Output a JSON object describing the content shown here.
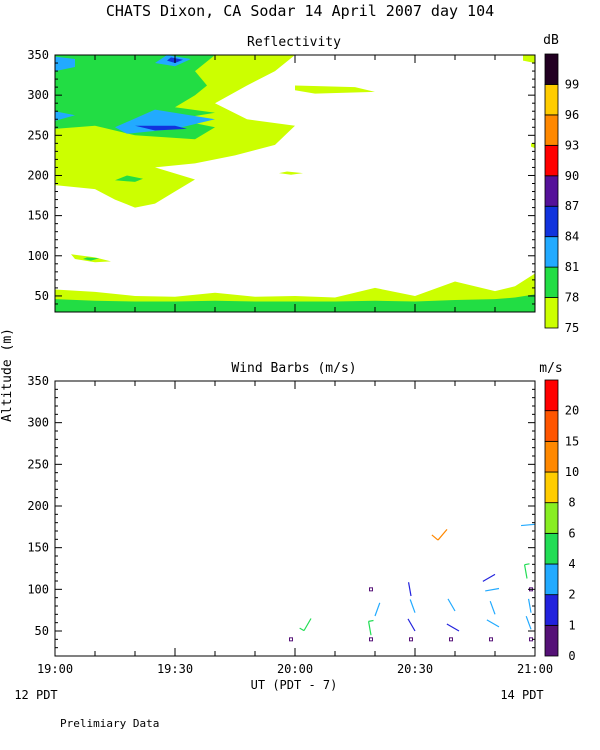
{
  "title": "CHATS Dixon, CA  Sodar  14 April 2007  day 104",
  "ylabel": "Altitude (m)",
  "xlabel": "UT  (PDT - 7)",
  "footer_left": "12 PDT",
  "footer_right": "14 PDT",
  "note": "Prelimiary Data",
  "chart_data": [
    {
      "type": "heatmap",
      "title": "Reflectivity",
      "unit_label": "dB",
      "x_ticks": [
        "19:00",
        "19:30",
        "20:00",
        "20:30",
        "21:00"
      ],
      "y_ticks": [
        50,
        100,
        150,
        200,
        250,
        300,
        350
      ],
      "ylim": [
        30,
        350
      ],
      "colorbar": {
        "labels": [
          "75",
          "78",
          "81",
          "84",
          "87",
          "90",
          "93",
          "96",
          "99"
        ],
        "colors": [
          "#ccff00",
          "#22dd44",
          "#22aaff",
          "#1133dd",
          "#551199",
          "#ff0000",
          "#ff8800",
          "#ffcc00",
          "#220022"
        ]
      },
      "x_minutes": [
        0,
        5,
        10,
        15,
        20,
        25,
        30,
        35,
        40,
        45,
        50,
        55,
        60
      ],
      "surface_layer": [
        {
          "minute": 0,
          "top": 58,
          "mid": 46
        },
        {
          "minute": 10,
          "top": 55,
          "mid": 44
        },
        {
          "minute": 20,
          "top": 50,
          "mid": 43
        },
        {
          "minute": 30,
          "top": 49,
          "mid": 43
        },
        {
          "minute": 40,
          "top": 54,
          "mid": 44
        },
        {
          "minute": 50,
          "top": 49,
          "mid": 43
        },
        {
          "minute": 60,
          "top": 50,
          "mid": 43
        },
        {
          "minute": 70,
          "top": 48,
          "mid": 43
        },
        {
          "minute": 80,
          "top": 60,
          "mid": 44
        },
        {
          "minute": 90,
          "top": 50,
          "mid": 43
        },
        {
          "minute": 100,
          "top": 68,
          "mid": 45
        },
        {
          "minute": 110,
          "top": 56,
          "mid": 46
        },
        {
          "minute": 115,
          "top": 62,
          "mid": 48
        },
        {
          "minute": 120,
          "top": 78,
          "mid": 52
        }
      ],
      "cloud_regions": [
        {
          "level": "75",
          "polygon": [
            [
              0,
              350
            ],
            [
              60,
              350
            ],
            [
              55,
              330
            ],
            [
              48,
              312
            ],
            [
              40,
              290
            ],
            [
              48,
              270
            ],
            [
              60,
              262
            ],
            [
              55,
              238
            ],
            [
              45,
              225
            ],
            [
              35,
              215
            ],
            [
              25,
              210
            ],
            [
              35,
              195
            ],
            [
              30,
              180
            ],
            [
              25,
              165
            ],
            [
              20,
              160
            ],
            [
              15,
              170
            ],
            [
              10,
              183
            ],
            [
              0,
              188
            ]
          ]
        },
        {
          "level": "75",
          "polygon": [
            [
              38,
              350
            ],
            [
              52,
              350
            ],
            [
              52,
              338
            ],
            [
              45,
              335
            ]
          ]
        },
        {
          "level": "75",
          "polygon": [
            [
              60,
              312
            ],
            [
              75,
              310
            ],
            [
              80,
              304
            ],
            [
              65,
              302
            ],
            [
              60,
              306
            ]
          ]
        },
        {
          "level": "75",
          "polygon": [
            [
              12,
              200
            ],
            [
              20,
              196
            ],
            [
              26,
              186
            ],
            [
              22,
              178
            ],
            [
              15,
              176
            ],
            [
              10,
              184
            ]
          ]
        },
        {
          "level": "75",
          "polygon": [
            [
              4,
              102
            ],
            [
              10,
              98
            ],
            [
              14,
              93
            ],
            [
              10,
              92
            ],
            [
              5,
              96
            ]
          ]
        },
        {
          "level": "75",
          "polygon": [
            [
              58,
              205
            ],
            [
              62,
              203
            ],
            [
              59,
              201
            ],
            [
              56,
              203
            ]
          ]
        },
        {
          "level": "75",
          "polygon": [
            [
              117,
              350
            ],
            [
              120,
              350
            ],
            [
              120,
              340
            ],
            [
              117,
              343
            ]
          ]
        },
        {
          "level": "75",
          "polygon": [
            [
              119,
              240
            ],
            [
              120,
              240
            ],
            [
              120,
              234
            ],
            [
              119,
              236
            ]
          ]
        },
        {
          "level": "78",
          "polygon": [
            [
              0,
              350
            ],
            [
              40,
              350
            ],
            [
              35,
              330
            ],
            [
              38,
              312
            ],
            [
              35,
              300
            ],
            [
              30,
              285
            ],
            [
              40,
              278
            ],
            [
              30,
              270
            ],
            [
              40,
              260
            ],
            [
              35,
              245
            ],
            [
              20,
              250
            ],
            [
              10,
              262
            ],
            [
              0,
              258
            ]
          ]
        },
        {
          "level": "78",
          "polygon": [
            [
              18,
              200
            ],
            [
              22,
              196
            ],
            [
              20,
              192
            ],
            [
              15,
              194
            ]
          ]
        },
        {
          "level": "78",
          "polygon": [
            [
              8,
              98
            ],
            [
              11,
              97
            ],
            [
              9,
              94
            ],
            [
              7,
              96
            ]
          ]
        },
        {
          "level": "81",
          "polygon": [
            [
              0,
              348
            ],
            [
              5,
              345
            ],
            [
              5,
              335
            ],
            [
              0,
              330
            ]
          ]
        },
        {
          "level": "81",
          "polygon": [
            [
              25,
              282
            ],
            [
              40,
              270
            ],
            [
              30,
              258
            ],
            [
              18,
              252
            ],
            [
              15,
              260
            ]
          ]
        },
        {
          "level": "81",
          "polygon": [
            [
              0,
              280
            ],
            [
              5,
              275
            ],
            [
              0,
              268
            ]
          ]
        },
        {
          "level": "81",
          "polygon": [
            [
              28,
              350
            ],
            [
              34,
              345
            ],
            [
              30,
              336
            ],
            [
              25,
              340
            ]
          ]
        },
        {
          "level": "84",
          "polygon": [
            [
              20,
              262
            ],
            [
              30,
              262
            ],
            [
              33,
              258
            ],
            [
              25,
              256
            ]
          ]
        },
        {
          "level": "84",
          "polygon": [
            [
              29,
              347
            ],
            [
              32,
              344
            ],
            [
              30,
              340
            ],
            [
              28,
              343
            ]
          ]
        }
      ]
    },
    {
      "type": "scatter",
      "title": "Wind Barbs (m/s)",
      "unit_label": "m/s",
      "x_ticks": [
        "19:00",
        "19:30",
        "20:00",
        "20:30",
        "21:00"
      ],
      "y_ticks": [
        50,
        100,
        150,
        200,
        250,
        300,
        350
      ],
      "ylim": [
        20,
        350
      ],
      "colorbar": {
        "labels": [
          "0",
          "1",
          "2",
          "4",
          "6",
          "8",
          "10",
          "15",
          "20"
        ],
        "colors": [
          "#551177",
          "#2222dd",
          "#22aaff",
          "#22dd55",
          "#88ee22",
          "#ffcc00",
          "#ff8800",
          "#ff5500",
          "#ff0000"
        ]
      },
      "barbs": [
        {
          "time": "19:59",
          "alt": 40,
          "speed": 0,
          "dir_deg": 0
        },
        {
          "time": "20:04",
          "alt": 65,
          "speed": 4,
          "dir_deg": 210
        },
        {
          "time": "20:19",
          "alt": 40,
          "speed": 0,
          "dir_deg": 0
        },
        {
          "time": "20:19",
          "alt": 100,
          "speed": 0,
          "dir_deg": 0
        },
        {
          "time": "20:19",
          "alt": 45,
          "speed": 4,
          "dir_deg": 350
        },
        {
          "time": "20:20",
          "alt": 68,
          "speed": 2,
          "dir_deg": 20
        },
        {
          "time": "20:29",
          "alt": 40,
          "speed": 0,
          "dir_deg": 0
        },
        {
          "time": "20:29",
          "alt": 92,
          "speed": 1,
          "dir_deg": 350
        },
        {
          "time": "20:30",
          "alt": 72,
          "speed": 2,
          "dir_deg": 340
        },
        {
          "time": "20:30",
          "alt": 50,
          "speed": 1,
          "dir_deg": 330
        },
        {
          "time": "20:38",
          "alt": 172,
          "speed": 10,
          "dir_deg": 220
        },
        {
          "time": "20:39",
          "alt": 40,
          "speed": 0,
          "dir_deg": 0
        },
        {
          "time": "20:40",
          "alt": 74,
          "speed": 2,
          "dir_deg": 330
        },
        {
          "time": "20:41",
          "alt": 50,
          "speed": 1,
          "dir_deg": 300
        },
        {
          "time": "20:49",
          "alt": 40,
          "speed": 0,
          "dir_deg": 0
        },
        {
          "time": "20:50",
          "alt": 118,
          "speed": 1,
          "dir_deg": 240
        },
        {
          "time": "20:51",
          "alt": 101,
          "speed": 2,
          "dir_deg": 260
        },
        {
          "time": "20:50",
          "alt": 70,
          "speed": 2,
          "dir_deg": 340
        },
        {
          "time": "20:51",
          "alt": 55,
          "speed": 2,
          "dir_deg": 300
        },
        {
          "time": "20:59",
          "alt": 40,
          "speed": 0,
          "dir_deg": 0
        },
        {
          "time": "20:59",
          "alt": 100,
          "speed": 0,
          "dir_deg": 0
        },
        {
          "time": "20:58",
          "alt": 113,
          "speed": 4,
          "dir_deg": 350
        },
        {
          "time": "21:00",
          "alt": 178,
          "speed": 2,
          "dir_deg": 265
        },
        {
          "time": "20:59",
          "alt": 72,
          "speed": 2,
          "dir_deg": 350
        },
        {
          "time": "20:59",
          "alt": 52,
          "speed": 2,
          "dir_deg": 340
        }
      ]
    }
  ]
}
